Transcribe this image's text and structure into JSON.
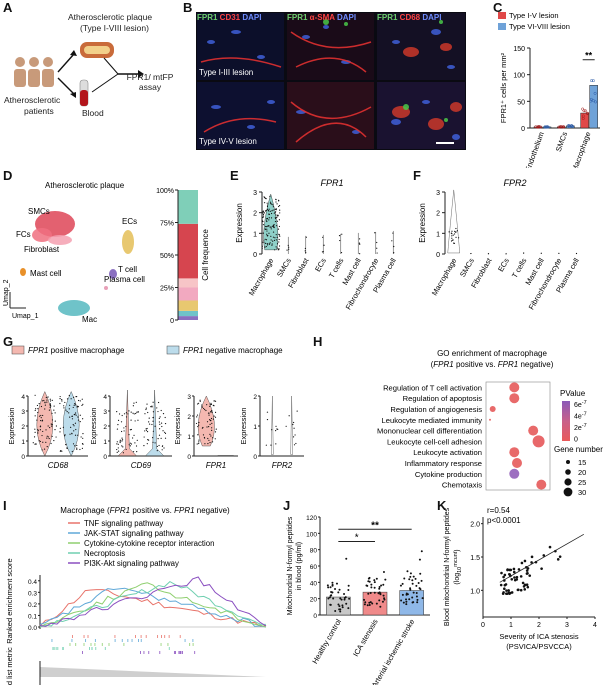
{
  "panels": [
    "A",
    "B",
    "C",
    "D",
    "E",
    "F",
    "G",
    "H",
    "I",
    "J",
    "K"
  ],
  "a": {
    "plaque_title": "Atherosclerotic plaque",
    "plaque_sub": "(Type I-VIII  lesion)",
    "patients": "Atherosclerotic",
    "patients2": "patients",
    "blood": "Blood",
    "assay1": "FPR1/ mtFP",
    "assay2": "assay"
  },
  "b": {
    "headers": [
      [
        {
          "t": "FPR1",
          "c": "#6fd06f"
        },
        {
          "t": " CD31 ",
          "c": "#ff4444"
        },
        {
          "t": "DAPI",
          "c": "#6f8dff"
        }
      ],
      [
        {
          "t": "FPR1",
          "c": "#6fd06f"
        },
        {
          "t": " α-SMA ",
          "c": "#ff4444"
        },
        {
          "t": "DAPI",
          "c": "#6f8dff"
        }
      ],
      [
        {
          "t": "FPR1",
          "c": "#6fd06f"
        },
        {
          "t": " CD68 ",
          "c": "#ff4444"
        },
        {
          "t": "DAPI",
          "c": "#6f8dff"
        }
      ]
    ],
    "row1_label": "Type I-III  lesion",
    "row2_label": "Type IV-V  lesion"
  },
  "chart_data": [
    {
      "panel": "C",
      "type": "bar",
      "categories": [
        "Endothelium",
        "SMCs",
        "Macrophage"
      ],
      "series": [
        {
          "name": "Type I-V lesion",
          "color": "#e04848",
          "values": [
            2,
            2,
            28
          ]
        },
        {
          "name": "Type VI-VIII  lesion",
          "color": "#6fa2d8",
          "values": [
            2,
            4,
            80
          ]
        }
      ],
      "ylabel": "FPR1⁺ cells per mm²",
      "ylim": [
        0,
        150
      ],
      "yticks": [
        0,
        50,
        100,
        150
      ],
      "significance": "**"
    },
    {
      "panel": "D",
      "type": "stacked-bar",
      "title": "Atherosclerotic plaque",
      "clusters": [
        "SMCs",
        "FCs",
        "Fibroblast",
        "ECs",
        "Mast cell",
        "T cell",
        "Plasma cell",
        "Mac"
      ],
      "ylabel": "Cell frequence",
      "yticks": [
        "0",
        "25%",
        "50%",
        "75%",
        "100%"
      ],
      "segments": [
        {
          "color": "#8a6fc0",
          "value": 3
        },
        {
          "color": "#6fc3c9",
          "value": 4
        },
        {
          "color": "#e8c870",
          "value": 8
        },
        {
          "color": "#f2a9c0",
          "value": 10
        },
        {
          "color": "#f7c5c7",
          "value": 7
        },
        {
          "color": "#d6454f",
          "value": 42
        },
        {
          "color": "#7fcfb8",
          "value": 26
        }
      ],
      "xlabel": "Umap_1",
      "y2label": "Umap_2"
    },
    {
      "panel": "E",
      "type": "violin",
      "title": "FPR1",
      "categories": [
        "Macrophage",
        "SMCs",
        "Fibroblast",
        "ECs",
        "T cells",
        "Mast cell",
        "Fibrochondrocyte",
        "Plasma cell"
      ],
      "ylabel": "Expression",
      "ylim": [
        0,
        3
      ],
      "yticks": [
        0,
        1,
        2,
        3
      ]
    },
    {
      "panel": "F",
      "type": "violin",
      "title": "FPR2",
      "categories": [
        "Macrophage",
        "SMCs",
        "Fibroblast",
        "ECs",
        "T cells",
        "Mast cell",
        "Fibrochondrocyte",
        "Plasma cell"
      ],
      "ylabel": "Expression",
      "ylim": [
        0,
        3
      ],
      "yticks": [
        0,
        1,
        2,
        3
      ]
    },
    {
      "panel": "G",
      "type": "violin",
      "legend": [
        {
          "label": "FPR1",
          "suffix": " positive macrophage",
          "color": "#f4b8b0"
        },
        {
          "label": "FPR1",
          "suffix": " negative macrophage",
          "color": "#bcdceb"
        }
      ],
      "genes": [
        {
          "name": "CD68",
          "yticks": [
            0,
            1,
            2,
            3,
            4
          ]
        },
        {
          "name": "CD69",
          "yticks": [
            0,
            1,
            2,
            3,
            4
          ]
        },
        {
          "name": "FPR1",
          "yticks": [
            0,
            1,
            2,
            3
          ]
        },
        {
          "name": "FPR2",
          "yticks": [
            0,
            1,
            2
          ]
        }
      ],
      "ylabel": "Expression"
    },
    {
      "panel": "H",
      "type": "dot",
      "title": "GO enrichment of macrophage",
      "subtitle_pre": "(",
      "subtitle_g1": "FPR1",
      "subtitle_mid": " positive  vs. ",
      "subtitle_g2": "FPR1",
      "subtitle_post": " negative)",
      "terms": [
        {
          "label": "Regulation of T cell activation",
          "x": 0.45,
          "size": 2,
          "color": "#e86a6a"
        },
        {
          "label": "Regulation of apoptosis",
          "x": 0.45,
          "size": 2,
          "color": "#e86a6a"
        },
        {
          "label": "Regulation of angiogenesis",
          "x": 0.05,
          "size": 0,
          "color": "#e86a6a"
        },
        {
          "label": "Leukocyte mediated immunity",
          "x": 0.0,
          "size": -1,
          "color": "#e86a6a"
        },
        {
          "label": "Mononuclear cell differentiation",
          "x": 0.8,
          "size": 2,
          "color": "#e86a6a"
        },
        {
          "label": "Leukocyte cell-cell adhesion",
          "x": 0.9,
          "size": 3,
          "color": "#e8686a"
        },
        {
          "label": "Leukocyte activation",
          "x": 0.45,
          "size": 2,
          "color": "#e86a6a"
        },
        {
          "label": "Inflammatory response",
          "x": 0.5,
          "size": 2,
          "color": "#e86a6a"
        },
        {
          "label": "Cytokine production",
          "x": 0.45,
          "size": 2,
          "color": "#9d6fc0"
        },
        {
          "label": "Chemotaxis",
          "x": 0.95,
          "size": 2,
          "color": "#e86a6a"
        }
      ],
      "pvalue_title": "PValue",
      "pvalue_ticks": [
        "6e-7",
        "4e-7",
        "2e-7",
        "0"
      ],
      "gene_title": "Gene number",
      "gene_ticks": [
        "15",
        "20",
        "25",
        "30"
      ]
    },
    {
      "panel": "I",
      "type": "line",
      "title_pre": "Macrophage (",
      "title_g1": "FPR1",
      "title_mid": " positive  vs. ",
      "title_g2": "FPR1",
      "title_post": " negative)",
      "ylabel": "Ranked enrichment score",
      "ylabel2": "Ranked list metric",
      "yticks": [
        "0.0",
        "0.1",
        "0.2",
        "0.3",
        "0.4"
      ],
      "series": [
        {
          "name": "TNF signaling pathway",
          "color": "#e8736a"
        },
        {
          "name": "JAK-STAT signaling pathway",
          "color": "#5fa8d8"
        },
        {
          "name": "Cytokine-cytokine receptor interaction",
          "color": "#8fcf6f"
        },
        {
          "name": "Necroptosis",
          "color": "#6fcfb0"
        },
        {
          "name": "PI3K-Akt signaling pathway",
          "color": "#8a4fc0"
        }
      ]
    },
    {
      "panel": "J",
      "type": "bar",
      "categories": [
        "Healthy control",
        "ICA stenosis",
        "Arterial ischemic stroke"
      ],
      "values": [
        22,
        28,
        30
      ],
      "colors": [
        "#c8c8c8",
        "#f08a8a",
        "#8fb8e8"
      ],
      "ylabel": "Mitochondrial N-formyl peptides in blood (pg/ml)",
      "ylim": [
        0,
        120
      ],
      "yticks": [
        "0",
        "20",
        "40",
        "60",
        "80",
        "100",
        "120"
      ],
      "sig1": "*",
      "sig2": "**"
    },
    {
      "panel": "K",
      "type": "scatter",
      "stat1": "r=0.54",
      "stat2": "p<0.0001",
      "xlabel": "Severity of ICA stenosis",
      "xlabel2": "(PSVICA/PSVCCA)",
      "ylabel": "Blood mitochondrial N-formyl peptides (log",
      "ylabel_sub": "10",
      "ylabel_sup": "mcunt",
      "ylabel_post": ")",
      "xlim": [
        0,
        4
      ],
      "ylim": [
        0.6,
        2.1
      ],
      "xticks": [
        "0",
        "1",
        "2",
        "3",
        "4"
      ],
      "yticks": [
        "1.0",
        "1.5",
        "2.0"
      ],
      "fit": [
        [
          0.6,
          1.12
        ],
        [
          3.6,
          1.84
        ]
      ]
    }
  ]
}
